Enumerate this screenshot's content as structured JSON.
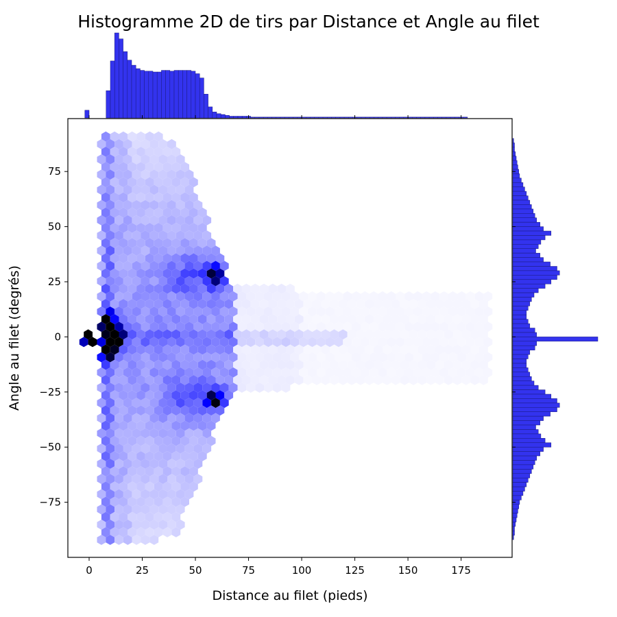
{
  "chart_data": {
    "type": "heatmap",
    "subtype": "hexbin-jointplot",
    "title": "Histogramme 2D de tirs par Distance et Angle au filet",
    "xlabel": "Distance au filet (pieds)",
    "ylabel": "Angle au filet (degrés)",
    "xlim": [
      -10,
      199
    ],
    "ylim": [
      -100,
      99
    ],
    "xticks": [
      0,
      25,
      50,
      75,
      100,
      125,
      150,
      175
    ],
    "yticks": [
      -75,
      -50,
      -25,
      0,
      25,
      50,
      75
    ],
    "xtick_labels": [
      "0",
      "25",
      "50",
      "75",
      "100",
      "125",
      "150",
      "175"
    ],
    "ytick_labels": [
      "−75",
      "−50",
      "−25",
      "0",
      "25",
      "50",
      "75"
    ],
    "colormap": [
      "#ffffff",
      "#0000ff",
      "#000000"
    ],
    "marginal_color": "#3333ee",
    "hotspots": [
      {
        "distance": 0,
        "angle": 0,
        "level": "max"
      },
      {
        "distance": 9,
        "angle": 6,
        "level": "very-high"
      },
      {
        "distance": 9,
        "angle": -6,
        "level": "very-high"
      },
      {
        "distance": 12,
        "angle": 0,
        "level": "very-high"
      },
      {
        "distance": 59,
        "angle": 28,
        "level": "high"
      },
      {
        "distance": 59,
        "angle": -28,
        "level": "high"
      }
    ],
    "marginal_x": {
      "bin_width": 2,
      "counts": [
        0,
        0,
        0,
        0,
        9,
        0,
        0,
        0,
        0,
        32,
        67,
        100,
        93,
        78,
        68,
        62,
        58,
        56,
        55,
        55,
        54,
        54,
        56,
        56,
        55,
        56,
        56,
        56,
        56,
        55,
        52,
        47,
        28,
        13,
        7,
        5,
        4,
        3,
        2,
        2,
        2,
        2,
        2,
        1,
        1,
        1,
        1,
        1,
        1,
        1,
        1,
        1,
        1,
        1,
        1,
        1,
        1,
        1,
        1,
        1,
        1,
        1,
        1,
        1,
        1,
        1,
        1,
        1,
        1,
        1,
        1,
        1,
        1,
        1,
        1,
        1,
        1,
        1,
        1,
        1,
        1,
        1,
        1,
        1,
        1,
        1,
        1,
        1,
        1,
        1,
        1,
        1,
        1,
        1
      ]
    },
    "marginal_y": {
      "bin_width": 2,
      "counts": [
        1,
        2,
        2,
        3,
        4,
        5,
        6,
        7,
        8,
        10,
        12,
        14,
        16,
        18,
        20,
        22,
        24,
        26,
        28,
        32,
        36,
        45,
        38,
        33,
        30,
        27,
        32,
        36,
        44,
        52,
        55,
        52,
        45,
        38,
        30,
        25,
        22,
        20,
        18,
        16,
        16,
        18,
        20,
        26,
        28,
        100,
        28,
        26,
        20,
        18,
        16,
        16,
        18,
        20,
        22,
        25,
        30,
        38,
        45,
        52,
        55,
        52,
        44,
        36,
        32,
        27,
        30,
        33,
        38,
        45,
        36,
        32,
        28,
        26,
        24,
        22,
        20,
        18,
        16,
        14,
        12,
        10,
        8,
        7,
        6,
        5,
        4,
        3,
        2,
        2,
        1
      ]
    }
  }
}
